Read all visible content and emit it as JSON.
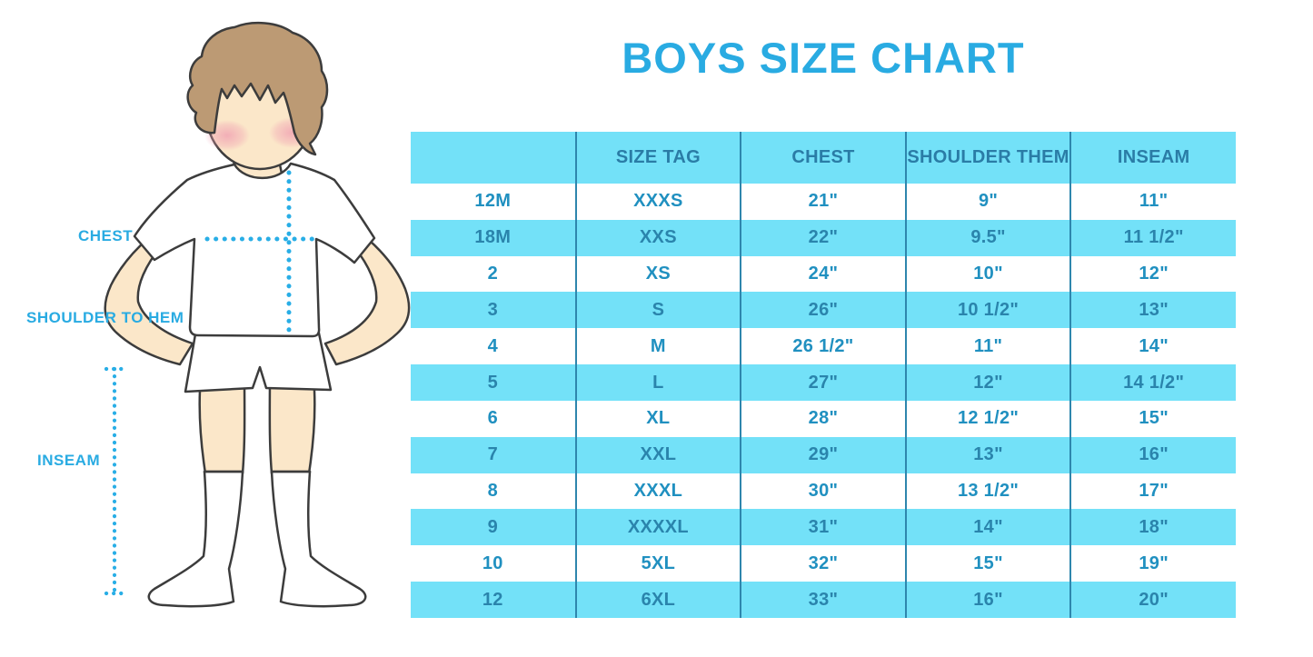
{
  "title": "BOYS SIZE CHART",
  "figure": {
    "illustration": "boy-outline-illustration",
    "labels": {
      "chest": "CHEST",
      "shoulder_to_hem": "SHOULDER TO HEM",
      "inseam": "INSEAM"
    }
  },
  "colors": {
    "accent_blue": "#29ABE2",
    "band_cyan": "#73E1F8",
    "header_text": "#2A7CA6",
    "cell_text": "#2090C0",
    "column_divider": "#2E86AD",
    "dotted_line": "#29AEE6",
    "hair_brown": "#BC9A74",
    "skin": "#FBE7C9"
  },
  "chart_data": {
    "type": "table",
    "title": "BOYS SIZE CHART",
    "columns": [
      "",
      "SIZE TAG",
      "CHEST",
      "SHOULDER THEM",
      "INSEAM"
    ],
    "rows": [
      [
        "12M",
        "XXXS",
        "21\"",
        "9\"",
        "11\""
      ],
      [
        "18M",
        "XXS",
        "22\"",
        "9.5\"",
        "11 1/2\""
      ],
      [
        "2",
        "XS",
        "24\"",
        "10\"",
        "12\""
      ],
      [
        "3",
        "S",
        "26\"",
        "10 1/2\"",
        "13\""
      ],
      [
        "4",
        "M",
        "26 1/2\"",
        "11\"",
        "14\""
      ],
      [
        "5",
        "L",
        "27\"",
        "12\"",
        "14 1/2\""
      ],
      [
        "6",
        "XL",
        "28\"",
        "12 1/2\"",
        "15\""
      ],
      [
        "7",
        "XXL",
        "29\"",
        "13\"",
        "16\""
      ],
      [
        "8",
        "XXXL",
        "30\"",
        "13 1/2\"",
        "17\""
      ],
      [
        "9",
        "XXXXL",
        "31\"",
        "14\"",
        "18\""
      ],
      [
        "10",
        "5XL",
        "32\"",
        "15\"",
        "19\""
      ],
      [
        "12",
        "6XL",
        "33\"",
        "16\"",
        "20\""
      ]
    ],
    "layout": {
      "header_fill": "cyan",
      "row_striping": "white/cyan alternating",
      "grid": "vertical-dividers-only"
    }
  }
}
